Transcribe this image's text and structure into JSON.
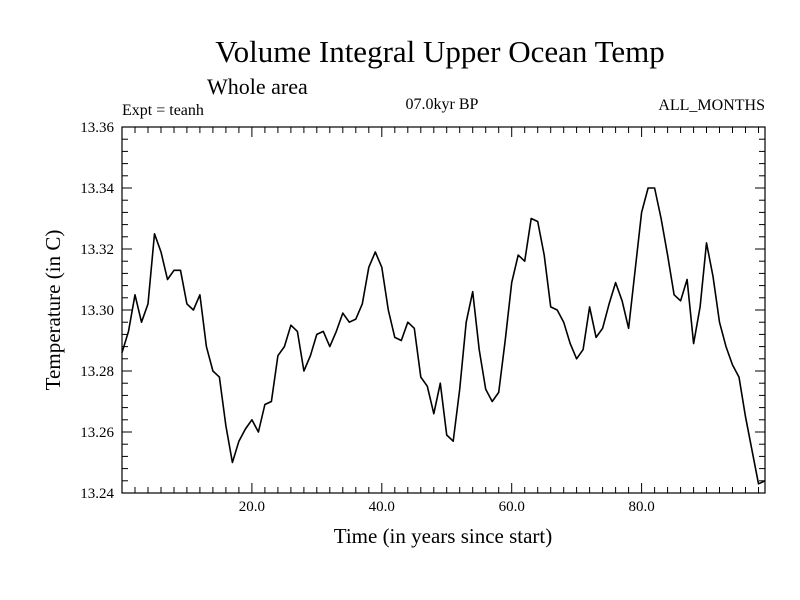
{
  "chart_data": {
    "type": "line",
    "title": "Volume Integral Upper Ocean Temp",
    "subtitle": "Whole area",
    "experiment": "Expt = teanh",
    "period": "07.0kyr BP",
    "months": "ALL_MONTHS",
    "xlabel": "Time (in years since start)",
    "ylabel": "Temperature (in C)",
    "xlim": [
      0,
      99
    ],
    "ylim": [
      13.24,
      13.36
    ],
    "x_ticks": [
      20.0,
      40.0,
      60.0,
      80.0
    ],
    "x_tick_labels": [
      "20.0",
      "40.0",
      "60.0",
      "80.0"
    ],
    "y_ticks": [
      13.24,
      13.26,
      13.28,
      13.3,
      13.32,
      13.34,
      13.36
    ],
    "y_tick_labels": [
      "13.24",
      "13.26",
      "13.28",
      "13.30",
      "13.32",
      "13.34",
      "13.36"
    ],
    "series": [
      {
        "name": "Temperature",
        "x": [
          0,
          1,
          2,
          3,
          4,
          5,
          6,
          7,
          8,
          9,
          10,
          11,
          12,
          13,
          14,
          15,
          16,
          17,
          18,
          19,
          20,
          21,
          22,
          23,
          24,
          25,
          26,
          27,
          28,
          29,
          30,
          31,
          32,
          33,
          34,
          35,
          36,
          37,
          38,
          39,
          40,
          41,
          42,
          43,
          44,
          45,
          46,
          47,
          48,
          49,
          50,
          51,
          52,
          53,
          54,
          55,
          56,
          57,
          58,
          59,
          60,
          61,
          62,
          63,
          64,
          65,
          66,
          67,
          68,
          69,
          70,
          71,
          72,
          73,
          74,
          75,
          76,
          77,
          78,
          79,
          80,
          81,
          82,
          83,
          84,
          85,
          86,
          87,
          88,
          89,
          90,
          91,
          92,
          93,
          94,
          95,
          96,
          97,
          98,
          99
        ],
        "values": [
          13.286,
          13.293,
          13.305,
          13.296,
          13.302,
          13.325,
          13.319,
          13.31,
          13.313,
          13.313,
          13.302,
          13.3,
          13.305,
          13.288,
          13.28,
          13.278,
          13.262,
          13.25,
          13.257,
          13.261,
          13.264,
          13.26,
          13.269,
          13.27,
          13.285,
          13.288,
          13.295,
          13.293,
          13.28,
          13.285,
          13.292,
          13.293,
          13.288,
          13.293,
          13.299,
          13.296,
          13.297,
          13.302,
          13.314,
          13.319,
          13.314,
          13.3,
          13.291,
          13.29,
          13.296,
          13.294,
          13.278,
          13.275,
          13.266,
          13.276,
          13.259,
          13.257,
          13.274,
          13.296,
          13.306,
          13.287,
          13.274,
          13.27,
          13.273,
          13.29,
          13.309,
          13.318,
          13.316,
          13.33,
          13.329,
          13.318,
          13.301,
          13.3,
          13.296,
          13.289,
          13.284,
          13.287,
          13.301,
          13.291,
          13.294,
          13.302,
          13.309,
          13.303,
          13.294,
          13.313,
          13.332,
          13.34,
          13.34,
          13.33,
          13.318,
          13.305,
          13.303,
          13.31,
          13.289,
          13.301,
          13.322,
          13.311,
          13.296,
          13.288,
          13.282,
          13.278,
          13.265,
          13.254,
          13.243,
          13.244
        ]
      }
    ]
  }
}
